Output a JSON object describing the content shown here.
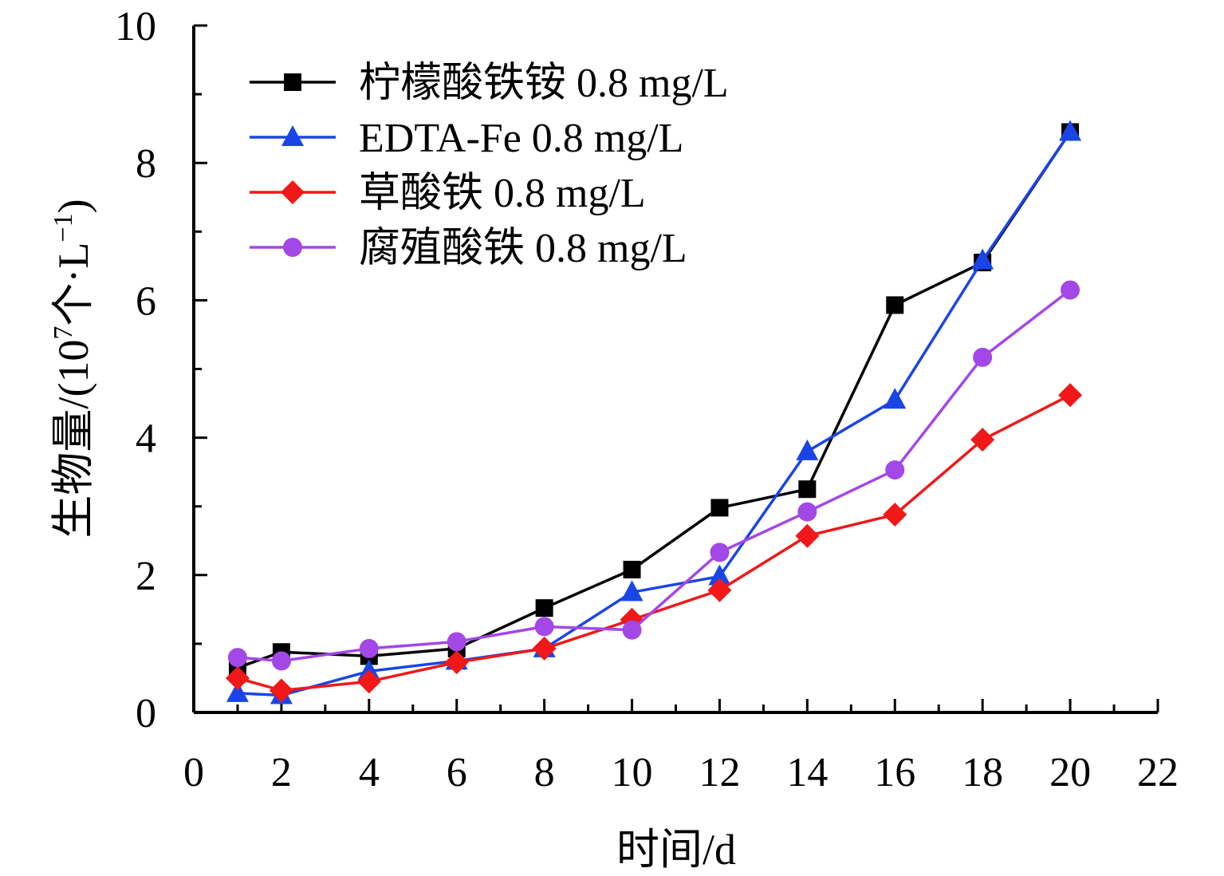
{
  "chart_data": {
    "type": "line",
    "title": "",
    "xlabel": "时间/d",
    "ylabel": {
      "prefix": "生物量/(10",
      "exp1": "7",
      "mid": "个·L",
      "exp2": "−1",
      "suffix": ")"
    },
    "xlim": [
      0,
      22
    ],
    "ylim": [
      0,
      10
    ],
    "xticks": [
      "0",
      "2",
      "4",
      "6",
      "8",
      "10",
      "12",
      "14",
      "16",
      "18",
      "20",
      "22"
    ],
    "yticks": [
      "0",
      "2",
      "4",
      "6",
      "8",
      "10"
    ],
    "x": [
      1,
      2,
      4,
      6,
      8,
      10,
      12,
      14,
      16,
      18,
      20
    ],
    "legend_position": "top-left",
    "series": [
      {
        "name": "柠檬酸铁铵 0.8 mg/L",
        "color": "#000000",
        "marker": "square",
        "values": [
          0.65,
          0.88,
          0.82,
          0.93,
          1.52,
          2.08,
          2.98,
          3.25,
          5.93,
          6.55,
          8.45
        ]
      },
      {
        "name": "EDTA-Fe 0.8 mg/L",
        "color": "#1a45e6",
        "marker": "triangle",
        "values": [
          0.28,
          0.25,
          0.6,
          0.75,
          0.93,
          1.75,
          1.98,
          3.8,
          4.55,
          6.58,
          8.45
        ]
      },
      {
        "name": "草酸铁 0.8 mg/L",
        "color": "#f01818",
        "marker": "diamond",
        "values": [
          0.5,
          0.32,
          0.45,
          0.73,
          0.93,
          1.35,
          1.78,
          2.57,
          2.88,
          3.97,
          4.62
        ]
      },
      {
        "name": "腐殖酸铁 0.8 mg/L",
        "color": "#a347e6",
        "marker": "circle",
        "values": [
          0.8,
          0.75,
          0.93,
          1.03,
          1.25,
          1.2,
          2.33,
          2.92,
          3.53,
          5.17,
          6.15
        ]
      }
    ]
  }
}
